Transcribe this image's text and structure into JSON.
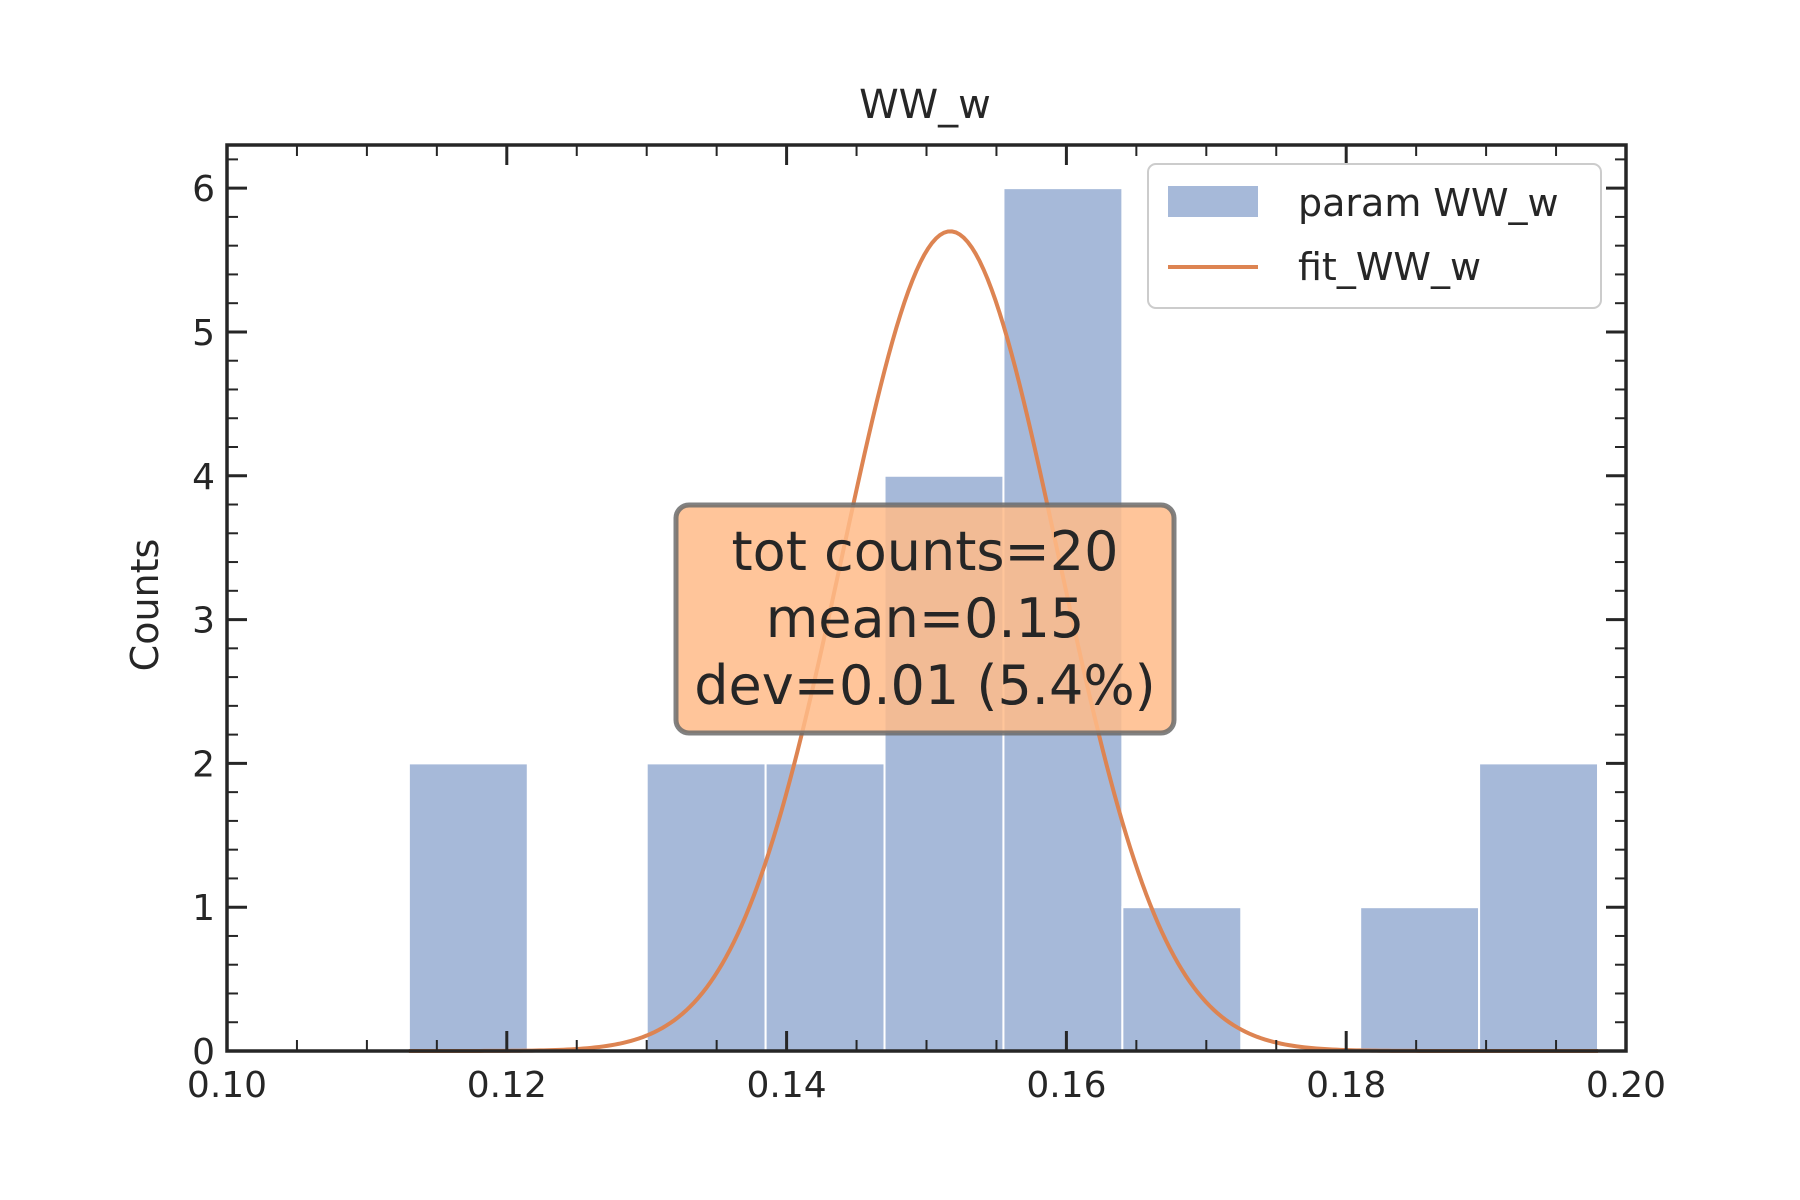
{
  "chart_data": {
    "type": "bar",
    "title": "WW_w",
    "xlabel": "",
    "ylabel": "Counts",
    "xlim": [
      0.1,
      0.2
    ],
    "ylim": [
      0,
      6.3
    ],
    "xticks": [
      "0.10",
      "0.12",
      "0.14",
      "0.16",
      "0.18",
      "0.20"
    ],
    "yticks": [
      "0",
      "1",
      "2",
      "3",
      "4",
      "5",
      "6"
    ],
    "grid": false,
    "legend": "top-right",
    "series": [
      {
        "name": "param WW_w",
        "type": "histogram",
        "color": "#a6b9d9",
        "bins": [
          {
            "x0": 0.113,
            "x1": 0.1215,
            "count": 2
          },
          {
            "x0": 0.1215,
            "x1": 0.13,
            "count": 0
          },
          {
            "x0": 0.13,
            "x1": 0.1385,
            "count": 2
          },
          {
            "x0": 0.1385,
            "x1": 0.147,
            "count": 2
          },
          {
            "x0": 0.147,
            "x1": 0.1555,
            "count": 4
          },
          {
            "x0": 0.1555,
            "x1": 0.164,
            "count": 6
          },
          {
            "x0": 0.164,
            "x1": 0.1725,
            "count": 1
          },
          {
            "x0": 0.1725,
            "x1": 0.181,
            "count": 0
          },
          {
            "x0": 0.181,
            "x1": 0.1895,
            "count": 1
          },
          {
            "x0": 0.1895,
            "x1": 0.198,
            "count": 2
          }
        ]
      },
      {
        "name": "fit_WW_w",
        "type": "line",
        "color": "#dd8452",
        "gaussian": {
          "amplitude": 5.7,
          "mean": 0.1517,
          "sigma": 0.0077
        },
        "x_range": [
          0.113,
          0.198
        ]
      }
    ],
    "annotation": {
      "lines": [
        "tot counts=20",
        "mean=0.15",
        "dev=0.01 (5.4%)"
      ],
      "background": "#ffbb88",
      "border": "#6b6b6b"
    }
  }
}
